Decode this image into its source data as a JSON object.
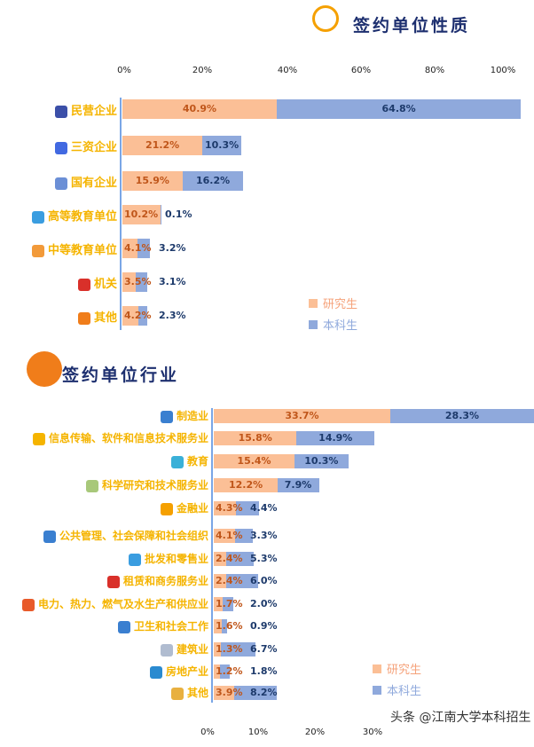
{
  "colors": {
    "grad": "#fbbf96",
    "ugrad": "#8fa9dc",
    "grad_text": "#c0561a",
    "ugrad_text": "#1d3a6b",
    "category": "#f5b400"
  },
  "chart_data": [
    {
      "type": "bar",
      "stacked": true,
      "orientation": "horizontal",
      "title": "签约单位性质",
      "ticks": [
        "0%",
        "20%",
        "40%",
        "60%",
        "80%",
        "100%"
      ],
      "categories": [
        "民营企业",
        "三资企业",
        "国有企业",
        "高等教育单位",
        "中等教育单位",
        "机关",
        "其他"
      ],
      "icons": [
        "office-building-icon",
        "city-buildings-icon",
        "globe-building-icon",
        "school-building-icon",
        "kindergarten-icon",
        "party-emblem-icon",
        "grid-pin-icon"
      ],
      "icon_colors": [
        "#3b4fa8",
        "#4169e1",
        "#6b8fd6",
        "#3a9de0",
        "#f29a3a",
        "#d9302a",
        "#f07d1a"
      ],
      "series": [
        {
          "name": "研究生",
          "values": [
            40.9,
            21.2,
            15.9,
            10.2,
            4.1,
            3.5,
            4.2
          ],
          "labels": [
            "40.9%",
            "21.2%",
            "15.9%",
            "10.2%",
            "4.1%",
            "3.5%",
            "4.2%"
          ]
        },
        {
          "name": "本科生",
          "values": [
            64.8,
            10.3,
            16.2,
            0.1,
            3.2,
            3.1,
            2.3
          ],
          "labels": [
            "64.8%",
            "10.3%",
            "16.2%",
            "0.1%",
            "3.2%",
            "3.1%",
            "2.3%"
          ]
        }
      ],
      "legend": "bottom-right"
    },
    {
      "type": "bar",
      "stacked": true,
      "orientation": "horizontal",
      "title": "签约单位行业",
      "ticks": [
        "0%",
        "10%",
        "20%",
        "30%"
      ],
      "categories": [
        "制造业",
        "信息传输、软件和信息技术服务业",
        "教育",
        "科学研究和技术服务业",
        "金融业",
        "公共管理、社会保障和社会组织",
        "批发和零售业",
        "租赁和商务服务业",
        "电力、热力、燃气及水生产和供应业",
        "卫生和社会工作",
        "建筑业",
        "房地产业",
        "其他"
      ],
      "icons": [
        "factory-icon",
        "cloud-icon",
        "graduation-cap-icon",
        "chart-monitor-icon",
        "coins-icon",
        "people-icon",
        "shop-icon",
        "shop-sign-icon",
        "power-icon",
        "hospital-icon",
        "crane-icon",
        "buildings-icon",
        "more-icon"
      ],
      "icon_colors": [
        "#3a7fd0",
        "#f5b400",
        "#3ab0d8",
        "#a8c87a",
        "#f5a000",
        "#3a7fd0",
        "#3a9de0",
        "#d9302a",
        "#e85a2a",
        "#3a7fd0",
        "#b0bcd0",
        "#2a8ad0",
        "#e8b040"
      ],
      "series": [
        {
          "name": "研究生",
          "values": [
            33.7,
            15.8,
            15.4,
            12.2,
            4.3,
            4.1,
            2.4,
            2.4,
            1.7,
            1.6,
            1.3,
            1.2,
            3.9
          ],
          "labels": [
            "33.7%",
            "15.8%",
            "15.4%",
            "12.2%",
            "4.3%",
            "4.1%",
            "2.4%",
            "2.4%",
            "1.7%",
            "1.6%",
            "1.3%",
            "1.2%",
            "3.9%"
          ]
        },
        {
          "name": "本科生",
          "values": [
            28.3,
            14.9,
            10.3,
            7.9,
            4.4,
            3.3,
            5.3,
            6.0,
            2.0,
            0.9,
            6.7,
            1.8,
            8.2
          ],
          "labels": [
            "28.3%",
            "14.9%",
            "10.3%",
            "7.9%",
            "4.4%",
            "3.3%",
            "5.3%",
            "6.0%",
            "2.0%",
            "0.9%",
            "6.7%",
            "1.8%",
            "8.2%"
          ]
        }
      ],
      "legend": "bottom-right"
    }
  ],
  "watermark": "头条 @江南大学本科招生"
}
